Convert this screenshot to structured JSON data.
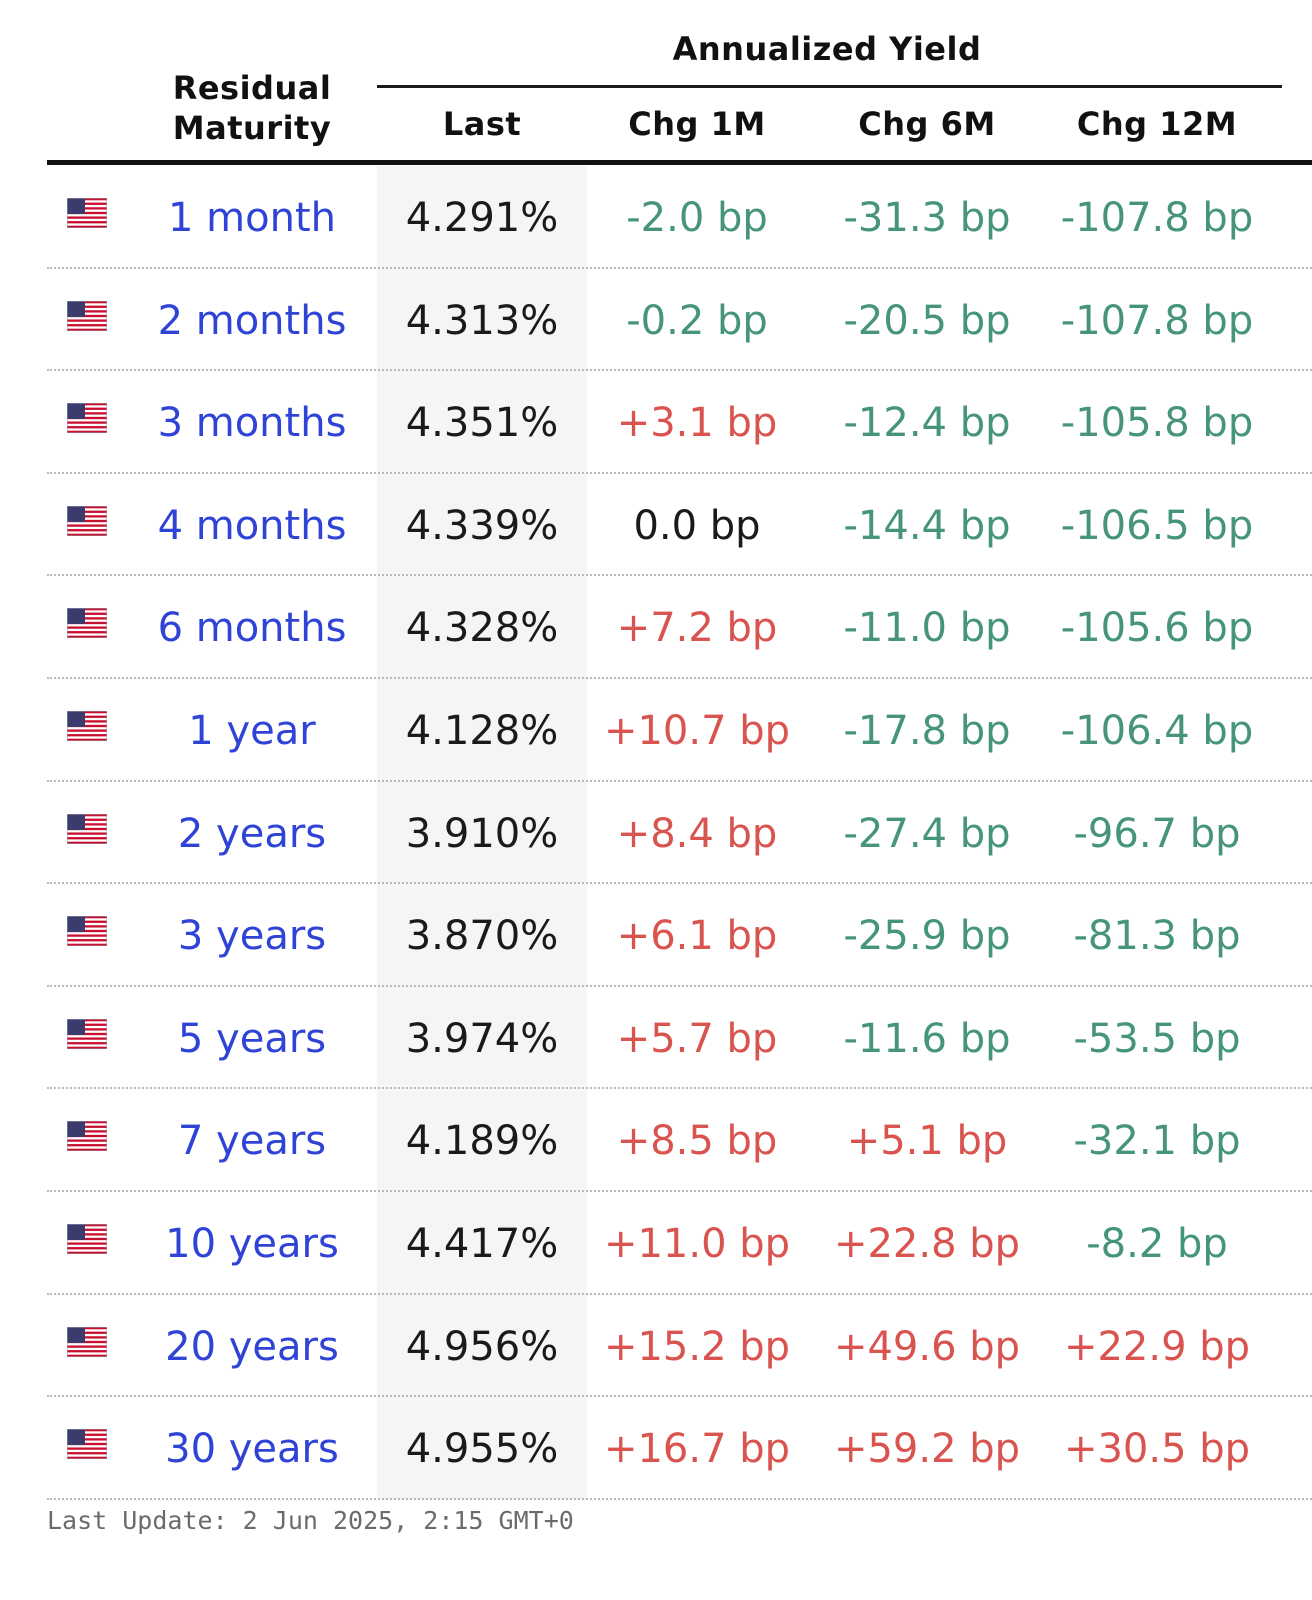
{
  "header": {
    "group_title": "Annualized Yield",
    "maturity_line1": "Residual",
    "maturity_line2": "Maturity",
    "last": "Last",
    "chg_1m": "Chg 1M",
    "chg_6m": "Chg 6M",
    "chg_12m": "Chg 12M"
  },
  "colors": {
    "link": "#2f43d6",
    "negative": "#46957b",
    "positive": "#d9534f",
    "neutral": "#1a1a1a",
    "last_column_bg": "#f4f5f7"
  },
  "rows": [
    {
      "flag": "us-flag-icon",
      "maturity": "1 month",
      "last": "4.291%",
      "chg_1m": "-2.0 bp",
      "chg_6m": "-31.3 bp",
      "chg_12m": "-107.8 bp"
    },
    {
      "flag": "us-flag-icon",
      "maturity": "2 months",
      "last": "4.313%",
      "chg_1m": "-0.2 bp",
      "chg_6m": "-20.5 bp",
      "chg_12m": "-107.8 bp"
    },
    {
      "flag": "us-flag-icon",
      "maturity": "3 months",
      "last": "4.351%",
      "chg_1m": "+3.1 bp",
      "chg_6m": "-12.4 bp",
      "chg_12m": "-105.8 bp"
    },
    {
      "flag": "us-flag-icon",
      "maturity": "4 months",
      "last": "4.339%",
      "chg_1m": "0.0 bp",
      "chg_6m": "-14.4 bp",
      "chg_12m": "-106.5 bp"
    },
    {
      "flag": "us-flag-icon",
      "maturity": "6 months",
      "last": "4.328%",
      "chg_1m": "+7.2 bp",
      "chg_6m": "-11.0 bp",
      "chg_12m": "-105.6 bp"
    },
    {
      "flag": "us-flag-icon",
      "maturity": "1 year",
      "last": "4.128%",
      "chg_1m": "+10.7 bp",
      "chg_6m": "-17.8 bp",
      "chg_12m": "-106.4 bp"
    },
    {
      "flag": "us-flag-icon",
      "maturity": "2 years",
      "last": "3.910%",
      "chg_1m": "+8.4 bp",
      "chg_6m": "-27.4 bp",
      "chg_12m": "-96.7 bp"
    },
    {
      "flag": "us-flag-icon",
      "maturity": "3 years",
      "last": "3.870%",
      "chg_1m": "+6.1 bp",
      "chg_6m": "-25.9 bp",
      "chg_12m": "-81.3 bp"
    },
    {
      "flag": "us-flag-icon",
      "maturity": "5 years",
      "last": "3.974%",
      "chg_1m": "+5.7 bp",
      "chg_6m": "-11.6 bp",
      "chg_12m": "-53.5 bp"
    },
    {
      "flag": "us-flag-icon",
      "maturity": "7 years",
      "last": "4.189%",
      "chg_1m": "+8.5 bp",
      "chg_6m": "+5.1 bp",
      "chg_12m": "-32.1 bp"
    },
    {
      "flag": "us-flag-icon",
      "maturity": "10 years",
      "last": "4.417%",
      "chg_1m": "+11.0 bp",
      "chg_6m": "+22.8 bp",
      "chg_12m": "-8.2 bp"
    },
    {
      "flag": "us-flag-icon",
      "maturity": "20 years",
      "last": "4.956%",
      "chg_1m": "+15.2 bp",
      "chg_6m": "+49.6 bp",
      "chg_12m": "+22.9 bp"
    },
    {
      "flag": "us-flag-icon",
      "maturity": "30 years",
      "last": "4.955%",
      "chg_1m": "+16.7 bp",
      "chg_6m": "+59.2 bp",
      "chg_12m": "+30.5 bp"
    }
  ],
  "footer": {
    "last_update": "Last Update: 2 Jun 2025, 2:15 GMT+0"
  }
}
